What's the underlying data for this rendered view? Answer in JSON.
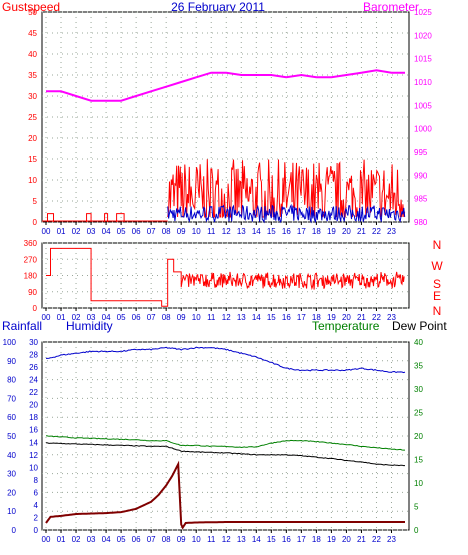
{
  "header": {
    "left_label": "Gustspeed",
    "title": "26 February 2011",
    "right_label": "Barometer"
  },
  "colors": {
    "gust": "#ff0000",
    "wind": "#0000cc",
    "barometer": "#ff00ff",
    "humidity": "#0000cc",
    "temperature": "#008000",
    "dewpoint": "#000000",
    "rainfall": "#800000",
    "direction": "#ff0000",
    "label_blue": "#0000cc",
    "label_red": "#ff0000",
    "label_magenta": "#ff00ff",
    "label_green": "#008000"
  },
  "compass": [
    "N",
    "W",
    "S",
    "E",
    "N"
  ],
  "lower_labels": {
    "rainfall": "Rainfall",
    "humidity": "Humidity",
    "temperature": "Temperature",
    "dewpoint": "Dew Point"
  },
  "chart_data": [
    {
      "type": "line",
      "name": "wind-and-barometer",
      "x_ticks": [
        "00",
        "01",
        "02",
        "03",
        "04",
        "05",
        "06",
        "07",
        "08",
        "09",
        "10",
        "11",
        "12",
        "13",
        "14",
        "15",
        "16",
        "17",
        "18",
        "19",
        "20",
        "21",
        "22",
        "23"
      ],
      "left_axis": {
        "ticks": [
          0,
          5,
          10,
          15,
          20,
          25,
          30,
          35,
          40,
          45,
          50
        ],
        "ylim": [
          0,
          50
        ]
      },
      "right_axis": {
        "ticks": [
          980,
          985,
          990,
          995,
          1000,
          1005,
          1010,
          1015,
          1020,
          1025
        ],
        "ylim": [
          980,
          1025
        ]
      },
      "gust_segments": [
        {
          "start_hour": 0.1,
          "end_hour": 0.5,
          "value": 2
        },
        {
          "start_hour": 2.7,
          "end_hour": 3.0,
          "value": 2
        },
        {
          "start_hour": 3.9,
          "end_hour": 4.1,
          "value": 2
        },
        {
          "start_hour": 4.7,
          "end_hour": 5.2,
          "value": 2
        },
        {
          "start_hour": 8.1,
          "end_hour": 23.9,
          "value_min": 0,
          "value_max": 15
        }
      ],
      "barometer": {
        "hours": [
          0,
          1,
          2,
          3,
          4,
          5,
          6,
          7,
          8,
          9,
          10,
          11,
          12,
          13,
          14,
          15,
          16,
          17,
          18,
          19,
          20,
          21,
          22,
          23,
          23.9
        ],
        "values": [
          1008,
          1008,
          1007,
          1006,
          1006,
          1006,
          1007,
          1008,
          1009,
          1010,
          1011,
          1012,
          1012,
          1011.5,
          1011.5,
          1011.5,
          1011,
          1011.5,
          1011,
          1011,
          1011.5,
          1012,
          1012.5,
          1012,
          1012
        ]
      }
    },
    {
      "type": "line",
      "name": "wind-direction",
      "x_ticks": [
        "00",
        "01",
        "02",
        "03",
        "04",
        "05",
        "06",
        "07",
        "08",
        "09",
        "10",
        "11",
        "12",
        "13",
        "14",
        "15",
        "16",
        "17",
        "18",
        "19",
        "20",
        "21",
        "22",
        "23"
      ],
      "left_axis": {
        "ticks": [
          0,
          90,
          180,
          270,
          360
        ],
        "ylim": [
          0,
          360
        ]
      },
      "compass": [
        "N",
        "W",
        "S",
        "E",
        "N"
      ],
      "steps": [
        {
          "hour": 0,
          "value": 180
        },
        {
          "hour": 0.3,
          "value": 330
        },
        {
          "hour": 3.0,
          "value": 40
        },
        {
          "hour": 7.7,
          "value": 10
        },
        {
          "hour": 8.1,
          "value": 270
        },
        {
          "hour": 8.5,
          "value": 200
        },
        {
          "hour": 9.0,
          "value": 130
        }
      ],
      "noisy_range": {
        "start_hour": 9.0,
        "end_hour": 23.9,
        "value_min": 70,
        "value_max": 220
      }
    },
    {
      "type": "line",
      "name": "humidity-temperature-dewpoint-rainfall",
      "x_ticks": [
        "00",
        "01",
        "02",
        "03",
        "04",
        "05",
        "06",
        "07",
        "08",
        "09",
        "10",
        "11",
        "12",
        "13",
        "14",
        "15",
        "16",
        "17",
        "18",
        "19",
        "20",
        "21",
        "22",
        "23"
      ],
      "left_outer_axis": {
        "label": "Rainfall",
        "ticks": [
          0,
          10,
          20,
          30,
          40,
          50,
          60,
          70,
          80,
          90,
          100
        ],
        "ylim": [
          0,
          100
        ]
      },
      "left_inner_axis": {
        "label": "Humidity",
        "ticks": [
          0,
          2,
          4,
          6,
          8,
          10,
          12,
          14,
          16,
          18,
          20,
          22,
          24,
          26,
          28,
          30
        ],
        "ylim": [
          0,
          30
        ]
      },
      "right_axis": {
        "label": "Temperature / Dew Point",
        "ticks": [
          0,
          5,
          10,
          15,
          20,
          25,
          30,
          35,
          40
        ],
        "ylim": [
          0,
          40
        ]
      },
      "series": [
        {
          "name": "Humidity",
          "hours": [
            0,
            1,
            2,
            3,
            4,
            5,
            6,
            7,
            8,
            9,
            10,
            11,
            12,
            13,
            14,
            15,
            16,
            17,
            18,
            19,
            20,
            21,
            22,
            23,
            23.9
          ],
          "values": [
            91,
            93,
            94,
            95,
            95,
            95,
            96,
            96,
            97,
            96,
            97,
            97,
            96,
            94,
            92,
            89,
            86,
            85,
            85,
            85,
            85,
            86,
            85,
            84,
            84
          ]
        },
        {
          "name": "Temperature",
          "hours": [
            0,
            1,
            2,
            3,
            4,
            5,
            6,
            7,
            8,
            9,
            10,
            11,
            12,
            13,
            14,
            15,
            16,
            17,
            18,
            19,
            20,
            21,
            22,
            23,
            23.9
          ],
          "values": [
            20,
            19.8,
            19.6,
            19.5,
            19.4,
            19.3,
            19.2,
            19.0,
            19.0,
            18.0,
            18.0,
            17.8,
            17.8,
            17.6,
            17.7,
            18.5,
            19.0,
            19.0,
            18.8,
            18.5,
            18.2,
            17.8,
            17.5,
            17.2,
            17.0
          ]
        },
        {
          "name": "Dew Point",
          "hours": [
            0,
            1,
            2,
            3,
            4,
            5,
            6,
            7,
            8,
            9,
            10,
            11,
            12,
            13,
            14,
            15,
            16,
            17,
            18,
            19,
            20,
            21,
            22,
            23,
            23.9
          ],
          "values": [
            18.5,
            18.4,
            18.3,
            18.2,
            18.1,
            18.0,
            17.9,
            17.8,
            17.8,
            16.8,
            16.6,
            16.5,
            16.4,
            16.2,
            16.0,
            16.0,
            16.0,
            15.8,
            15.5,
            15.2,
            14.8,
            14.5,
            14.0,
            13.8,
            13.7
          ]
        },
        {
          "name": "Rainfall",
          "hours": [
            0,
            0.3,
            1,
            2,
            3,
            4,
            5,
            6,
            7,
            7.5,
            8,
            8.4,
            8.8,
            9.0,
            9.1,
            9.3,
            10,
            12,
            14,
            16,
            18,
            20,
            22,
            23.9
          ],
          "values": [
            1.5,
            2.8,
            3.0,
            3.4,
            3.5,
            3.6,
            3.8,
            4.5,
            6.0,
            7.5,
            9.5,
            11.5,
            14.0,
            1.2,
            0.5,
            1.5,
            1.6,
            1.7,
            1.7,
            1.7,
            1.7,
            1.7,
            1.7,
            1.7
          ]
        }
      ]
    }
  ]
}
